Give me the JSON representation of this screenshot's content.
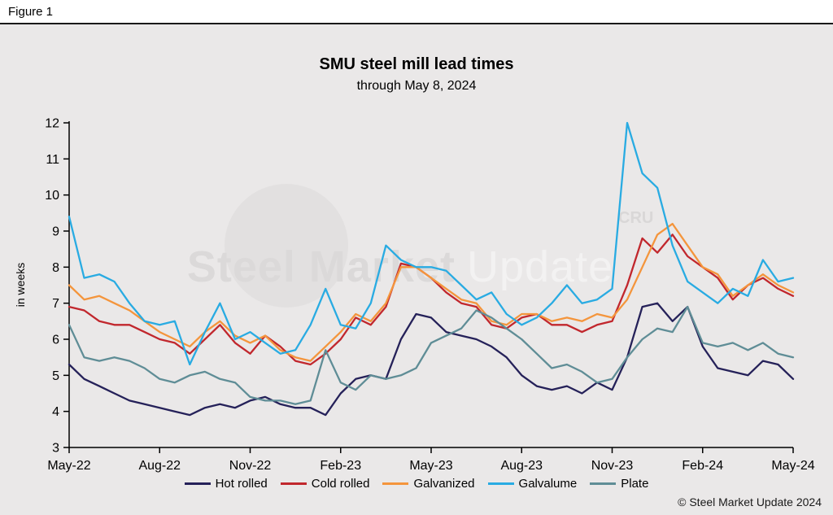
{
  "figure_label": "Figure 1",
  "copyright": "© Steel Market Update 2024",
  "watermark": {
    "text_bold": "Steel Market",
    "text_light": "Update",
    "badge": "CRU"
  },
  "colors": {
    "background": "#eae8e8",
    "axis": "#000000"
  },
  "chart_data": {
    "type": "line",
    "title": "SMU steel mill lead times",
    "subtitle": "through May 8, 2024",
    "ylabel": "in weeks",
    "ylim": [
      3,
      12
    ],
    "y_ticks": [
      3,
      4,
      5,
      6,
      7,
      8,
      9,
      10,
      11,
      12
    ],
    "grid": false,
    "legend_position": "bottom",
    "x_tick_labels": [
      "May-22",
      "Aug-22",
      "Nov-22",
      "Feb-23",
      "May-23",
      "Aug-23",
      "Nov-23",
      "Feb-24",
      "May-24"
    ],
    "x_tick_positions": [
      0,
      6,
      12,
      18,
      24,
      30,
      36,
      42,
      48
    ],
    "series": [
      {
        "name": "Hot rolled",
        "color": "#252159",
        "values": [
          5.3,
          4.9,
          4.7,
          4.5,
          4.3,
          4.2,
          4.1,
          4.0,
          3.9,
          4.1,
          4.2,
          4.1,
          4.3,
          4.4,
          4.2,
          4.1,
          4.1,
          3.9,
          4.5,
          4.9,
          5.0,
          4.9,
          6.0,
          6.7,
          6.6,
          6.2,
          6.1,
          6.0,
          5.8,
          5.5,
          5.0,
          4.7,
          4.6,
          4.7,
          4.5,
          4.8,
          4.6,
          5.5,
          6.9,
          7.0,
          6.5,
          6.9,
          5.8,
          5.2,
          5.1,
          5.0,
          5.4,
          5.3,
          4.9
        ]
      },
      {
        "name": "Cold rolled",
        "color": "#c1272d",
        "values": [
          6.9,
          6.8,
          6.5,
          6.4,
          6.4,
          6.2,
          6.0,
          5.9,
          5.6,
          6.0,
          6.4,
          5.9,
          5.6,
          6.1,
          5.8,
          5.4,
          5.3,
          5.6,
          6.0,
          6.6,
          6.4,
          6.9,
          8.1,
          8.0,
          7.7,
          7.3,
          7.0,
          6.9,
          6.4,
          6.3,
          6.6,
          6.7,
          6.4,
          6.4,
          6.2,
          6.4,
          6.5,
          7.5,
          8.8,
          8.4,
          8.9,
          8.3,
          8.0,
          7.7,
          7.1,
          7.5,
          7.7,
          7.4,
          7.2
        ]
      },
      {
        "name": "Galvanized",
        "color": "#f4953c",
        "values": [
          7.5,
          7.1,
          7.2,
          7.0,
          6.8,
          6.5,
          6.2,
          6.0,
          5.8,
          6.2,
          6.5,
          6.1,
          5.9,
          6.1,
          5.7,
          5.5,
          5.4,
          5.8,
          6.2,
          6.7,
          6.5,
          7.0,
          8.0,
          8.0,
          7.7,
          7.4,
          7.1,
          7.0,
          6.5,
          6.4,
          6.7,
          6.7,
          6.5,
          6.6,
          6.5,
          6.7,
          6.6,
          7.1,
          8.0,
          8.9,
          9.2,
          8.6,
          8.0,
          7.8,
          7.2,
          7.5,
          7.8,
          7.5,
          7.3
        ]
      },
      {
        "name": "Galvalume",
        "color": "#29abe2",
        "values": [
          9.4,
          7.7,
          7.8,
          7.6,
          7.0,
          6.5,
          6.4,
          6.5,
          5.3,
          6.2,
          7.0,
          6.0,
          6.2,
          5.9,
          5.6,
          5.7,
          6.4,
          7.4,
          6.4,
          6.3,
          7.0,
          8.6,
          8.2,
          8.0,
          8.0,
          7.9,
          7.5,
          7.1,
          7.3,
          6.7,
          6.4,
          6.6,
          7.0,
          7.5,
          7.0,
          7.1,
          7.4,
          12.0,
          10.6,
          10.2,
          8.6,
          7.6,
          7.3,
          7.0,
          7.4,
          7.2,
          8.2,
          7.6,
          7.7
        ]
      },
      {
        "name": "Plate",
        "color": "#5f8d96",
        "values": [
          6.4,
          5.5,
          5.4,
          5.5,
          5.4,
          5.2,
          4.9,
          4.8,
          5.0,
          5.1,
          4.9,
          4.8,
          4.4,
          4.3,
          4.3,
          4.2,
          4.3,
          5.7,
          4.8,
          4.6,
          5.0,
          4.9,
          5.0,
          5.2,
          5.9,
          6.1,
          6.3,
          6.8,
          6.6,
          6.3,
          6.0,
          5.6,
          5.2,
          5.3,
          5.1,
          4.8,
          4.9,
          5.5,
          6.0,
          6.3,
          6.2,
          6.9,
          5.9,
          5.8,
          5.9,
          5.7,
          5.9,
          5.6,
          5.5
        ]
      }
    ]
  }
}
